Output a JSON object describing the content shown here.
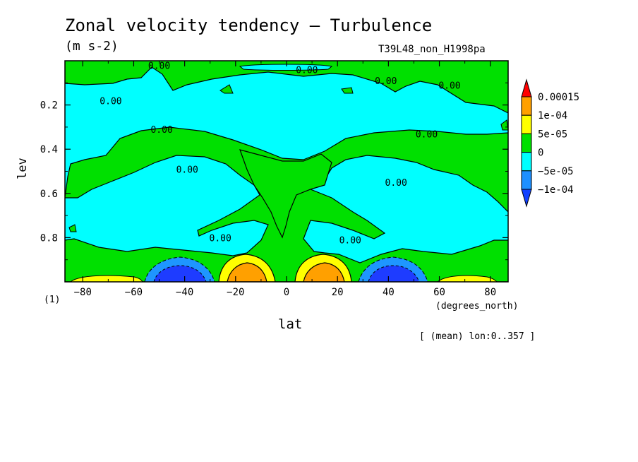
{
  "chart_data": {
    "type": "heatmap",
    "title": "Zonal velocity tendency — Turbulence",
    "units": "(m s-2)",
    "run_label": "T39L48_non_H1998pa",
    "xlabel": "lat",
    "xunits": "(degrees_north)",
    "ylabel": "lev",
    "dim_note": "(1)",
    "footnote": "[ (mean) lon:0..357 ]",
    "xlim": [
      -87,
      87
    ],
    "ylim": [
      1.0,
      0.0
    ],
    "x_ticks": [
      -80,
      -60,
      -40,
      -20,
      0,
      20,
      40,
      60,
      80
    ],
    "x_tick_labels": [
      "−80",
      "−60",
      "−40",
      "−20",
      "0",
      "20",
      "40",
      "60",
      "80"
    ],
    "y_ticks": [
      0.2,
      0.4,
      0.6,
      0.8
    ],
    "y_tick_labels": [
      "0.2",
      "0.4",
      "0.6",
      "0.8"
    ],
    "contour_labels": [
      {
        "text": "0.00",
        "lat": -50,
        "lev": 0.02
      },
      {
        "text": "0.00",
        "lat": 8,
        "lev": 0.04
      },
      {
        "text": "0.00",
        "lat": 39,
        "lev": 0.09
      },
      {
        "text": "0.00",
        "lat": 64,
        "lev": 0.11
      },
      {
        "text": "0.00",
        "lat": -69,
        "lev": 0.18
      },
      {
        "text": "0.00",
        "lat": -49,
        "lev": 0.31
      },
      {
        "text": "0.00",
        "lat": 55,
        "lev": 0.33
      },
      {
        "text": "0.00",
        "lat": -39,
        "lev": 0.49
      },
      {
        "text": "0.00",
        "lat": 43,
        "lev": 0.55
      },
      {
        "text": "0.00",
        "lat": -26,
        "lev": 0.8
      },
      {
        "text": "0.00",
        "lat": 25,
        "lev": 0.81
      }
    ],
    "colorbar": {
      "labels": [
        "0.00015",
        "1e-04",
        "5e-05",
        "0",
        "−5e-05",
        "−1e-04"
      ],
      "colors": [
        "#ff0000",
        "#ffa000",
        "#ffff00",
        "#00e000",
        "#00ffff",
        "#1e90ff",
        "#1040ff"
      ]
    },
    "colors": {
      "neg_strong": "#1e3cff",
      "neg_mid": "#1e96ff",
      "neg_weak": "#00ffff",
      "zero": "#00e000",
      "pos_weak": "#ffff00",
      "pos_mid": "#ffa000",
      "pos_strong": "#ff1e00"
    }
  }
}
